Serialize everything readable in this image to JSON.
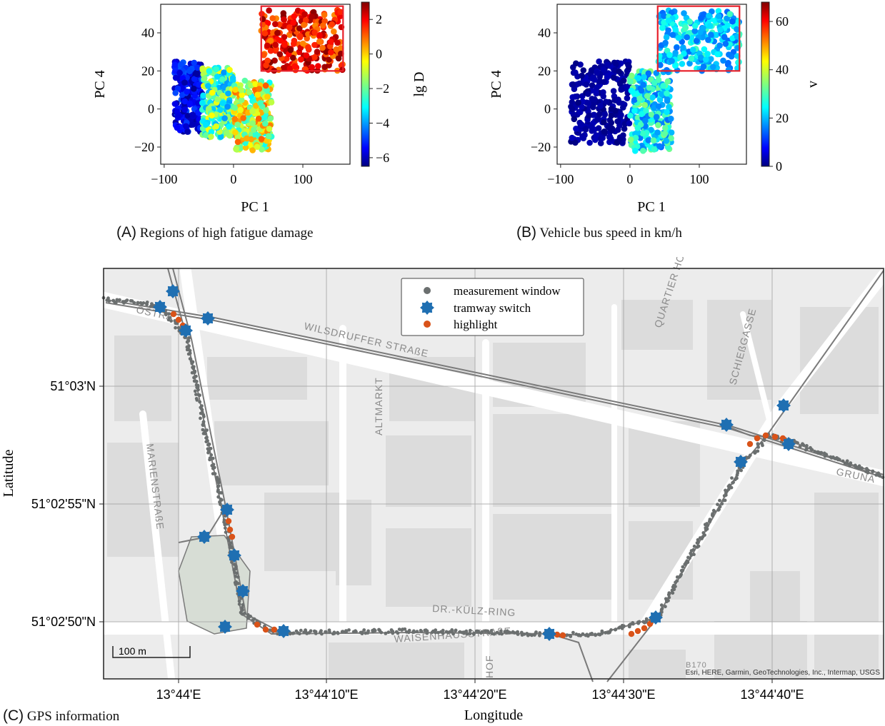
{
  "colors": {
    "tramway_switch": "#1f6fb2",
    "highlight": "#d95319",
    "measurement": "#6b6f6f",
    "box": "#e8202a"
  },
  "captions": {
    "a": {
      "tag": "(A)",
      "text": "Regions of high fatigue damage"
    },
    "b": {
      "tag": "(B)",
      "text": "Vehicle bus speed in km/h"
    },
    "c": {
      "tag": "(C)",
      "text": "GPS information"
    }
  },
  "chart_data": [
    {
      "id": "A",
      "type": "scatter",
      "xlabel": "PC 1",
      "ylabel": "PC 4",
      "xlim": [
        -105,
        168
      ],
      "ylim": [
        -29,
        55
      ],
      "xticks": [
        "−100",
        "0",
        "100"
      ],
      "xtick_values": [
        -100,
        0,
        100
      ],
      "yticks": [
        "−20",
        "0",
        "20",
        "40"
      ],
      "ytick_values": [
        -20,
        0,
        20,
        40
      ],
      "colorbar": {
        "label": "lg D",
        "range": [
          -6.5,
          3
        ],
        "ticks": [
          "2",
          "0",
          "−2",
          "−4",
          "−6"
        ],
        "tick_values": [
          2,
          0,
          -2,
          -4,
          -6
        ],
        "colormap": "jet"
      },
      "highlight_box": {
        "x": [
          40,
          158
        ],
        "y": [
          20,
          54
        ]
      },
      "point_clouds": [
        {
          "x_range": [
            -85,
            -45
          ],
          "y_range": [
            -12,
            25
          ],
          "value_range": [
            -6.3,
            -4.5
          ]
        },
        {
          "x_range": [
            -45,
            0
          ],
          "y_range": [
            -15,
            22
          ],
          "value_range": [
            -4,
            -0.5
          ]
        },
        {
          "x_range": [
            0,
            55
          ],
          "y_range": [
            -22,
            15
          ],
          "value_range": [
            -3,
            1
          ]
        },
        {
          "x_range": [
            40,
            158
          ],
          "y_range": [
            20,
            52
          ],
          "value_range": [
            0.5,
            3
          ]
        }
      ]
    },
    {
      "id": "B",
      "type": "scatter",
      "xlabel": "PC 1",
      "ylabel": "PC 4",
      "xlim": [
        -105,
        168
      ],
      "ylim": [
        -29,
        55
      ],
      "xticks": [
        "−100",
        "0",
        "100"
      ],
      "xtick_values": [
        -100,
        0,
        100
      ],
      "yticks": [
        "−20",
        "0",
        "20",
        "40"
      ],
      "ytick_values": [
        -20,
        0,
        20,
        40
      ],
      "colorbar": {
        "label": "v",
        "range": [
          0,
          68
        ],
        "ticks": [
          "60",
          "40",
          "20",
          "0"
        ],
        "tick_values": [
          60,
          40,
          20,
          0
        ],
        "colormap": "jet"
      },
      "highlight_box": {
        "x": [
          40,
          158
        ],
        "y": [
          20,
          54
        ]
      },
      "point_clouds": [
        {
          "x_range": [
            -85,
            0
          ],
          "y_range": [
            -18,
            25
          ],
          "value_range": [
            0,
            4
          ]
        },
        {
          "x_range": [
            0,
            60
          ],
          "y_range": [
            -22,
            20
          ],
          "value_range": [
            15,
            35
          ]
        },
        {
          "x_range": [
            40,
            158
          ],
          "y_range": [
            20,
            52
          ],
          "value_range": [
            15,
            30
          ]
        }
      ]
    },
    {
      "id": "C",
      "type": "map",
      "xlabel": "Longitude",
      "ylabel": "Latitude",
      "xticks": [
        "13°44'E",
        "13°44'10\"E",
        "13°44'20\"E",
        "13°44'30\"E",
        "13°44'40\"E"
      ],
      "yticks": [
        "51°03'N",
        "51°02'55\"N",
        "51°02'50\"N"
      ],
      "legend": [
        "measurement window",
        "tramway switch",
        "highlight"
      ],
      "scale_bar": "100 m",
      "attribution": "Esri, HERE, Garmin, GeoTechnologies, Inc., Intermap, USGS",
      "street_labels": [
        "WILSDRUFFER STRAßE",
        "ALTMARKT",
        "MARIENSTRAßE",
        "DR.-KÜLZ-RING",
        "WAISENHAUSSTRAßE",
        "QUARTIER HOY",
        "SCHIEßGASSE",
        "GRUNA",
        "HOF",
        "B170",
        "OSTRA"
      ]
    }
  ]
}
